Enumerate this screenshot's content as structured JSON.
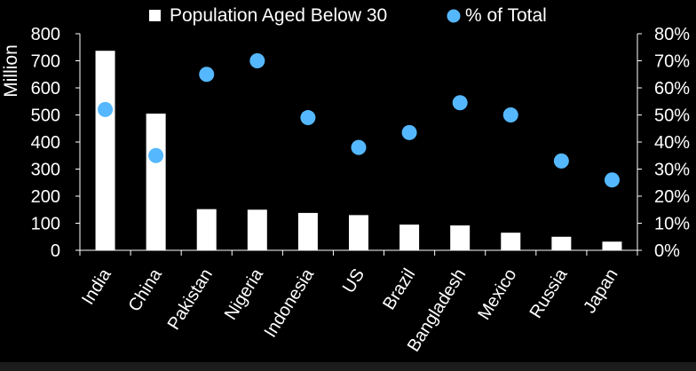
{
  "chart_data": {
    "type": "bar",
    "categories": [
      "India",
      "China",
      "Pakistan",
      "Nigeria",
      "Indonesia",
      "US",
      "Brazil",
      "Bangladesh",
      "Mexico",
      "Russia",
      "Japan"
    ],
    "series": [
      {
        "name": "Population Aged Below 30",
        "type": "bar",
        "axis": "left",
        "color": "#ffffff",
        "values": [
          737,
          505,
          152,
          150,
          138,
          130,
          95,
          92,
          65,
          50,
          32
        ]
      },
      {
        "name": "% of Total",
        "type": "scatter",
        "axis": "right",
        "color": "#55b8ff",
        "values": [
          52,
          35,
          65,
          70,
          49,
          38,
          43.5,
          54.5,
          50,
          33,
          26
        ]
      }
    ],
    "ylabel": "Million",
    "y_left": {
      "min": 0,
      "max": 800,
      "ticks": [
        0,
        100,
        200,
        300,
        400,
        500,
        600,
        700,
        800
      ]
    },
    "y_right": {
      "min": 0,
      "max": 80,
      "ticks": [
        "0%",
        "10%",
        "20%",
        "30%",
        "40%",
        "50%",
        "60%",
        "70%",
        "80%"
      ]
    },
    "legend_position": "top-center",
    "grid": false
  }
}
